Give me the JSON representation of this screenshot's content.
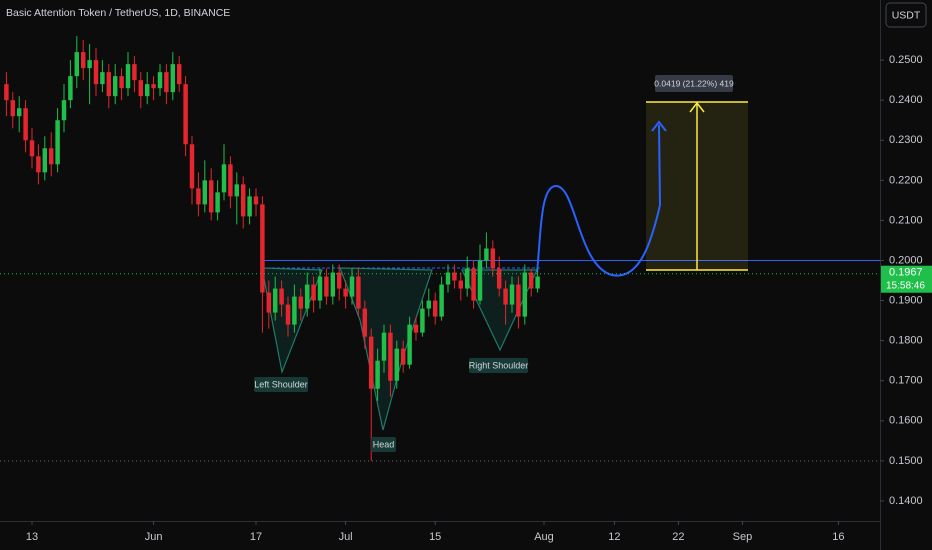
{
  "chart_data": {
    "type": "candlestick",
    "title": "Basic Attention Token / TetherUS, 1D, BINANCE",
    "currency": "USDT",
    "last_price": 0.1967,
    "countdown": "15:58:46",
    "annotations": [
      "Left Shoulder",
      "Head",
      "Right Shoulder"
    ],
    "measure_label": "0.0419 (21.22%) 419",
    "up_color": "#1fbf4a",
    "down_color": "#e5262e",
    "ylim": [
      0.135,
      0.265
    ],
    "yticks": [
      {
        "value": 0.14,
        "label": "0.1400"
      },
      {
        "value": 0.15,
        "label": "0.1500"
      },
      {
        "value": 0.16,
        "label": "0.1600"
      },
      {
        "value": 0.17,
        "label": "0.1700"
      },
      {
        "value": 0.18,
        "label": "0.1800"
      },
      {
        "value": 0.19,
        "label": "0.1900"
      },
      {
        "value": 0.2,
        "label": "0.2000"
      },
      {
        "value": 0.21,
        "label": "0.2100"
      },
      {
        "value": 0.22,
        "label": "0.2200"
      },
      {
        "value": 0.23,
        "label": "0.2300"
      },
      {
        "value": 0.24,
        "label": "0.2400"
      },
      {
        "value": 0.25,
        "label": "0.2500"
      }
    ],
    "xlim": [
      -5,
      132.5
    ],
    "xticks": [
      {
        "value": 0,
        "label": "13"
      },
      {
        "value": 19,
        "label": "Jun"
      },
      {
        "value": 35,
        "label": "17"
      },
      {
        "value": 49,
        "label": "Jul"
      },
      {
        "value": 63,
        "label": "15"
      },
      {
        "value": 80,
        "label": "Aug"
      },
      {
        "value": 91,
        "label": "12"
      },
      {
        "value": 101,
        "label": "22"
      },
      {
        "value": 111,
        "label": "Sep"
      },
      {
        "value": 126,
        "label": "16"
      }
    ],
    "x": [
      -4,
      -3,
      -2,
      -1,
      0,
      1,
      2,
      3,
      4,
      5,
      6,
      7,
      8,
      9,
      10,
      11,
      12,
      13,
      14,
      15,
      16,
      17,
      18,
      19,
      20,
      21,
      22,
      23,
      24,
      25,
      26,
      27,
      28,
      29,
      30,
      31,
      32,
      33,
      34,
      35,
      36,
      37,
      38,
      39,
      40,
      41,
      42,
      43,
      44,
      45,
      46,
      47,
      48,
      49,
      50,
      51,
      52,
      53,
      54,
      55,
      56,
      57,
      58,
      59,
      60,
      61,
      62,
      63,
      64,
      65,
      66,
      67,
      68,
      69,
      70,
      71,
      72,
      73,
      74,
      75,
      76,
      77,
      78,
      79
    ],
    "open": [
      0.244,
      0.24,
      0.236,
      0.238,
      0.23,
      0.226,
      0.222,
      0.228,
      0.224,
      0.235,
      0.24,
      0.246,
      0.252,
      0.248,
      0.25,
      0.244,
      0.247,
      0.241,
      0.246,
      0.243,
      0.249,
      0.245,
      0.241,
      0.244,
      0.243,
      0.247,
      0.242,
      0.249,
      0.244,
      0.229,
      0.218,
      0.214,
      0.22,
      0.212,
      0.217,
      0.224,
      0.216,
      0.219,
      0.211,
      0.216,
      0.214,
      0.192,
      0.187,
      0.193,
      0.189,
      0.184,
      0.191,
      0.188,
      0.194,
      0.19,
      0.196,
      0.191,
      0.197,
      0.193,
      0.191,
      0.196,
      0.188,
      0.181,
      0.168,
      0.175,
      0.182,
      0.17,
      0.178,
      0.174,
      0.184,
      0.182,
      0.188,
      0.19,
      0.186,
      0.194,
      0.197,
      0.195,
      0.193,
      0.198,
      0.19,
      0.2,
      0.203,
      0.198,
      0.193,
      0.189,
      0.194,
      0.186,
      0.197,
      0.193
    ],
    "high": [
      0.247,
      0.242,
      0.241,
      0.24,
      0.233,
      0.229,
      0.231,
      0.232,
      0.238,
      0.244,
      0.25,
      0.256,
      0.255,
      0.254,
      0.253,
      0.25,
      0.249,
      0.249,
      0.248,
      0.252,
      0.251,
      0.247,
      0.247,
      0.246,
      0.249,
      0.249,
      0.252,
      0.251,
      0.246,
      0.231,
      0.222,
      0.225,
      0.223,
      0.22,
      0.229,
      0.226,
      0.222,
      0.221,
      0.218,
      0.218,
      0.216,
      0.195,
      0.196,
      0.195,
      0.191,
      0.194,
      0.193,
      0.197,
      0.196,
      0.198,
      0.198,
      0.199,
      0.199,
      0.195,
      0.198,
      0.198,
      0.19,
      0.183,
      0.178,
      0.184,
      0.184,
      0.18,
      0.18,
      0.186,
      0.186,
      0.19,
      0.193,
      0.192,
      0.196,
      0.199,
      0.199,
      0.197,
      0.201,
      0.2,
      0.204,
      0.207,
      0.205,
      0.201,
      0.195,
      0.196,
      0.196,
      0.199,
      0.198,
      0.198
    ],
    "low": [
      0.236,
      0.233,
      0.232,
      0.227,
      0.223,
      0.219,
      0.22,
      0.221,
      0.222,
      0.232,
      0.238,
      0.243,
      0.245,
      0.239,
      0.241,
      0.242,
      0.238,
      0.239,
      0.24,
      0.241,
      0.242,
      0.238,
      0.239,
      0.24,
      0.241,
      0.239,
      0.24,
      0.242,
      0.226,
      0.214,
      0.211,
      0.212,
      0.21,
      0.21,
      0.215,
      0.213,
      0.209,
      0.208,
      0.209,
      0.211,
      0.182,
      0.183,
      0.185,
      0.186,
      0.181,
      0.182,
      0.185,
      0.186,
      0.187,
      0.188,
      0.189,
      0.189,
      0.19,
      0.188,
      0.189,
      0.186,
      0.178,
      0.15,
      0.165,
      0.172,
      0.166,
      0.168,
      0.172,
      0.173,
      0.18,
      0.181,
      0.186,
      0.184,
      0.185,
      0.192,
      0.193,
      0.19,
      0.191,
      0.188,
      0.189,
      0.198,
      0.196,
      0.191,
      0.184,
      0.187,
      0.183,
      0.184,
      0.191,
      0.192
    ],
    "close": [
      0.24,
      0.236,
      0.238,
      0.23,
      0.226,
      0.222,
      0.228,
      0.224,
      0.235,
      0.24,
      0.246,
      0.252,
      0.248,
      0.25,
      0.244,
      0.247,
      0.241,
      0.246,
      0.243,
      0.249,
      0.245,
      0.241,
      0.244,
      0.243,
      0.247,
      0.242,
      0.249,
      0.244,
      0.229,
      0.218,
      0.214,
      0.22,
      0.212,
      0.217,
      0.224,
      0.216,
      0.219,
      0.211,
      0.216,
      0.214,
      0.192,
      0.187,
      0.193,
      0.189,
      0.184,
      0.191,
      0.188,
      0.194,
      0.19,
      0.196,
      0.191,
      0.197,
      0.193,
      0.191,
      0.196,
      0.188,
      0.181,
      0.168,
      0.175,
      0.182,
      0.17,
      0.178,
      0.174,
      0.184,
      0.182,
      0.188,
      0.19,
      0.186,
      0.194,
      0.197,
      0.195,
      0.193,
      0.198,
      0.19,
      0.2,
      0.203,
      0.198,
      0.193,
      0.189,
      0.194,
      0.186,
      0.197,
      0.193,
      0.196
    ]
  }
}
